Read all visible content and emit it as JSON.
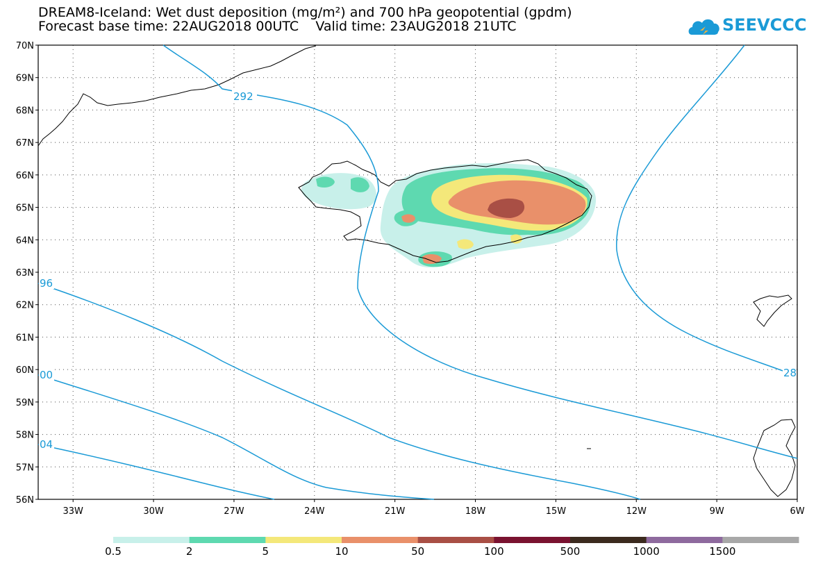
{
  "header": {
    "title_line1": "DREAM8-Iceland: Wet dust deposition (mg/m²) and 700 hPa geopotential (gpdm)",
    "title_line2": "Forecast base time: 22AUG2018 00UTC    Valid time: 23AUG2018 21UTC"
  },
  "logo": {
    "text": "SEEVCCC",
    "color": "#1a9ad6"
  },
  "map": {
    "lat_labels": [
      "70N",
      "69N",
      "68N",
      "67N",
      "66N",
      "65N",
      "64N",
      "63N",
      "62N",
      "61N",
      "60N",
      "59N",
      "58N",
      "57N",
      "56N"
    ],
    "lon_labels": [
      "33W",
      "30W",
      "27W",
      "24W",
      "21W",
      "18W",
      "15W",
      "12W",
      "9W",
      "6W"
    ],
    "lat_range": [
      56,
      70
    ],
    "lon_range": [
      -34.3,
      -6
    ],
    "contour_color": "#1a9ad6",
    "contour_labels": [
      "292",
      "96",
      "00",
      "04",
      "28"
    ]
  },
  "colorbar": {
    "colors": [
      "#c8f0ea",
      "#5ed9b0",
      "#f4e87a",
      "#e9906a",
      "#a94f45",
      "#7a1230",
      "#3b2a1e",
      "#8e6a9e",
      "#a8a8a8"
    ],
    "labels": [
      "0.5",
      "2",
      "5",
      "10",
      "50",
      "100",
      "500",
      "1000",
      "1500"
    ]
  }
}
